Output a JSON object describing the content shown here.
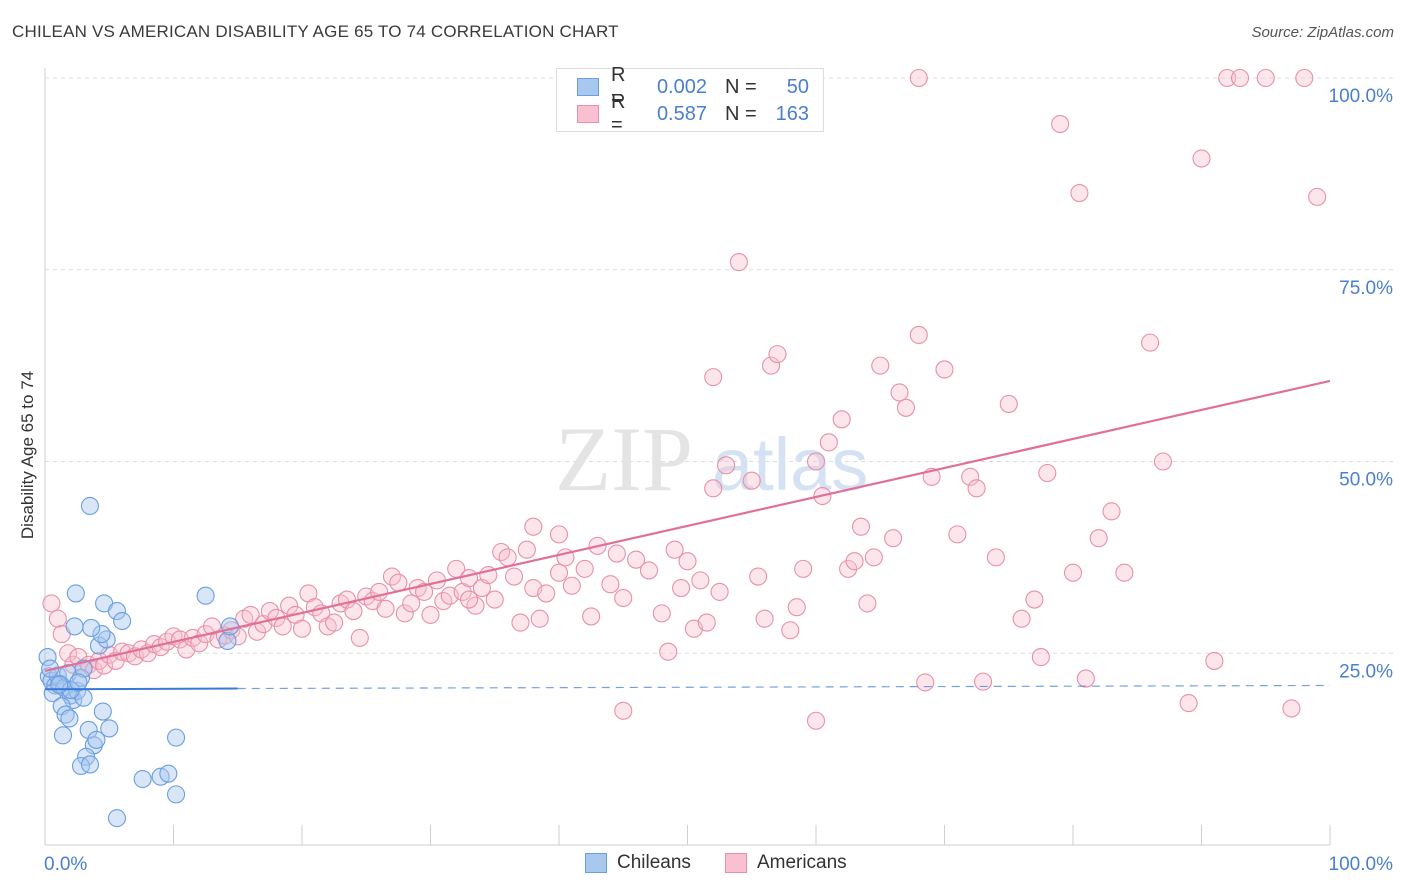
{
  "header": {
    "title": "CHILEAN VS AMERICAN DISABILITY AGE 65 TO 74 CORRELATION CHART",
    "source": "Source: ZipAtlas.com"
  },
  "legend": {
    "rows": [
      {
        "r_label": "R =",
        "r_value": "0.002",
        "n_label": "N =",
        "n_value": "50",
        "color": "#a8c8f0",
        "border": "#6a9ee0"
      },
      {
        "r_label": "R =",
        "r_value": "0.587",
        "n_label": "N =",
        "n_value": "163",
        "color": "#f8c0d0",
        "border": "#e890a8"
      }
    ]
  },
  "bottom_legend": {
    "items": [
      {
        "label": "Chileans",
        "color": "#a8c8f0",
        "border": "#6a9ee0"
      },
      {
        "label": "Americans",
        "color": "#f8c0d0",
        "border": "#e890a8"
      }
    ]
  },
  "watermark": {
    "zip": "ZIP",
    "atlas": "atlas"
  },
  "chart_data": {
    "type": "scatter",
    "title": "CHILEAN VS AMERICAN DISABILITY AGE 65 TO 74 CORRELATION CHART",
    "xlabel": "",
    "ylabel": "Disability Age 65 to 74",
    "xlim": [
      0,
      100
    ],
    "ylim": [
      0,
      100
    ],
    "x_tick_labels": [
      "0.0%",
      "100.0%"
    ],
    "y_tick_values": [
      25,
      50,
      75,
      100
    ],
    "y_tick_labels": [
      "25.0%",
      "50.0%",
      "75.0%",
      "100.0%"
    ],
    "grid": "horizontal dashed",
    "legend_position": "top-center",
    "colors": {
      "chileans": "#6a9ee0",
      "americans": "#e890a8",
      "chileans_line": "#3a78d8",
      "americans_line": "#e0709a",
      "axis_text": "#4a7fd0"
    },
    "series": [
      {
        "name": "Chileans",
        "trend": {
          "x": [
            0,
            15
          ],
          "y": [
            20.3,
            20.4
          ],
          "dashed_to": [
            100,
            20.8
          ]
        },
        "points": [
          [
            0.3,
            22.0
          ],
          [
            0.5,
            21.4
          ],
          [
            0.8,
            20.8
          ],
          [
            1.0,
            22.1
          ],
          [
            1.2,
            21.0
          ],
          [
            0.6,
            19.8
          ],
          [
            1.5,
            20.5
          ],
          [
            1.8,
            22.4
          ],
          [
            2.0,
            19.5
          ],
          [
            2.2,
            18.9
          ],
          [
            2.5,
            20.1
          ],
          [
            2.8,
            21.8
          ],
          [
            3.0,
            19.2
          ],
          [
            1.3,
            18.1
          ],
          [
            1.6,
            17.0
          ],
          [
            1.9,
            16.5
          ],
          [
            1.4,
            14.3
          ],
          [
            3.4,
            15.0
          ],
          [
            3.8,
            13.0
          ],
          [
            4.0,
            13.7
          ],
          [
            5.0,
            15.2
          ],
          [
            3.2,
            11.5
          ],
          [
            2.8,
            10.3
          ],
          [
            3.5,
            10.5
          ],
          [
            4.5,
            17.4
          ],
          [
            4.2,
            26.0
          ],
          [
            4.8,
            26.8
          ],
          [
            4.4,
            27.5
          ],
          [
            3.6,
            28.3
          ],
          [
            2.3,
            28.5
          ],
          [
            4.6,
            31.5
          ],
          [
            5.6,
            30.5
          ],
          [
            6.0,
            29.2
          ],
          [
            2.4,
            32.8
          ],
          [
            3.5,
            44.2
          ],
          [
            12.5,
            32.5
          ],
          [
            14.2,
            26.6
          ],
          [
            14.4,
            28.5
          ],
          [
            7.6,
            8.6
          ],
          [
            9.0,
            8.9
          ],
          [
            9.6,
            9.3
          ],
          [
            10.2,
            6.6
          ],
          [
            5.6,
            3.5
          ],
          [
            10.2,
            14.0
          ],
          [
            0.2,
            24.5
          ],
          [
            0.4,
            23.0
          ],
          [
            2.0,
            20.2
          ],
          [
            3.0,
            23.0
          ],
          [
            1.1,
            20.9
          ],
          [
            2.6,
            21.2
          ]
        ]
      },
      {
        "name": "Americans",
        "trend": {
          "x": [
            0,
            100
          ],
          "y": [
            22.7,
            60.5
          ]
        },
        "points": [
          [
            0.5,
            31.5
          ],
          [
            1.0,
            29.5
          ],
          [
            1.3,
            27.5
          ],
          [
            1.8,
            25.0
          ],
          [
            2.2,
            23.5
          ],
          [
            2.6,
            24.5
          ],
          [
            3.0,
            23.0
          ],
          [
            3.4,
            23.5
          ],
          [
            3.8,
            22.8
          ],
          [
            4.2,
            24.0
          ],
          [
            4.6,
            23.4
          ],
          [
            5.0,
            24.8
          ],
          [
            5.5,
            24.0
          ],
          [
            6.0,
            25.2
          ],
          [
            6.5,
            25.0
          ],
          [
            7.0,
            24.6
          ],
          [
            7.5,
            25.5
          ],
          [
            8.0,
            25.0
          ],
          [
            8.5,
            26.2
          ],
          [
            9.0,
            25.8
          ],
          [
            9.5,
            26.5
          ],
          [
            10.0,
            27.2
          ],
          [
            10.5,
            26.8
          ],
          [
            11.0,
            25.5
          ],
          [
            11.5,
            27.0
          ],
          [
            12.0,
            26.3
          ],
          [
            12.5,
            27.5
          ],
          [
            13.0,
            28.5
          ],
          [
            13.5,
            26.8
          ],
          [
            14.0,
            27.3
          ],
          [
            14.5,
            28.0
          ],
          [
            15.0,
            27.2
          ],
          [
            15.5,
            29.5
          ],
          [
            16.0,
            30.0
          ],
          [
            16.5,
            27.8
          ],
          [
            17.0,
            28.8
          ],
          [
            17.5,
            30.5
          ],
          [
            18.0,
            29.6
          ],
          [
            18.5,
            28.5
          ],
          [
            19.0,
            31.2
          ],
          [
            19.5,
            30.0
          ],
          [
            20.0,
            28.2
          ],
          [
            20.5,
            32.8
          ],
          [
            21.0,
            31.0
          ],
          [
            21.5,
            30.2
          ],
          [
            22.0,
            28.5
          ],
          [
            22.5,
            29.0
          ],
          [
            23.0,
            31.5
          ],
          [
            23.5,
            32.0
          ],
          [
            24.0,
            30.5
          ],
          [
            24.5,
            27.0
          ],
          [
            25.0,
            32.4
          ],
          [
            25.5,
            31.8
          ],
          [
            26.0,
            33.0
          ],
          [
            26.5,
            30.8
          ],
          [
            27.0,
            35.0
          ],
          [
            27.5,
            34.2
          ],
          [
            28.0,
            30.2
          ],
          [
            28.5,
            31.5
          ],
          [
            29.0,
            33.5
          ],
          [
            29.5,
            33.0
          ],
          [
            30.0,
            30.0
          ],
          [
            30.5,
            34.5
          ],
          [
            31.0,
            31.8
          ],
          [
            31.5,
            32.5
          ],
          [
            32.0,
            36.0
          ],
          [
            32.5,
            33.0
          ],
          [
            33.0,
            34.8
          ],
          [
            33.5,
            31.2
          ],
          [
            34.0,
            33.5
          ],
          [
            34.5,
            35.2
          ],
          [
            35.0,
            32.0
          ],
          [
            35.5,
            38.2
          ],
          [
            36.0,
            37.5
          ],
          [
            36.5,
            35.0
          ],
          [
            37.0,
            29.0
          ],
          [
            37.5,
            38.5
          ],
          [
            38.0,
            33.5
          ],
          [
            38.5,
            29.5
          ],
          [
            39.0,
            32.8
          ],
          [
            40.0,
            35.5
          ],
          [
            40.5,
            37.5
          ],
          [
            41.0,
            33.8
          ],
          [
            42.0,
            36.0
          ],
          [
            42.5,
            29.8
          ],
          [
            43.0,
            39.0
          ],
          [
            44.0,
            34.0
          ],
          [
            44.5,
            38.0
          ],
          [
            45.0,
            32.2
          ],
          [
            46.0,
            37.2
          ],
          [
            47.0,
            35.8
          ],
          [
            48.0,
            30.2
          ],
          [
            48.5,
            25.2
          ],
          [
            49.0,
            38.5
          ],
          [
            49.5,
            33.5
          ],
          [
            50.0,
            37.0
          ],
          [
            50.5,
            28.2
          ],
          [
            51.0,
            34.5
          ],
          [
            51.5,
            29.0
          ],
          [
            52.0,
            61.0
          ],
          [
            52.5,
            33.0
          ],
          [
            53.0,
            49.5
          ],
          [
            54.0,
            76.0
          ],
          [
            55.0,
            47.5
          ],
          [
            55.5,
            35.0
          ],
          [
            56.0,
            29.5
          ],
          [
            56.5,
            62.5
          ],
          [
            57.0,
            64.0
          ],
          [
            58.0,
            28.0
          ],
          [
            58.5,
            31.0
          ],
          [
            59.0,
            36.0
          ],
          [
            60.0,
            50.0
          ],
          [
            60.5,
            45.5
          ],
          [
            61.0,
            52.5
          ],
          [
            62.0,
            55.5
          ],
          [
            62.5,
            36.0
          ],
          [
            63.0,
            37.0
          ],
          [
            63.5,
            41.5
          ],
          [
            64.0,
            31.5
          ],
          [
            64.5,
            37.5
          ],
          [
            65.0,
            62.5
          ],
          [
            66.0,
            40.0
          ],
          [
            66.5,
            59.0
          ],
          [
            67.0,
            57.0
          ],
          [
            68.0,
            66.5
          ],
          [
            68.5,
            21.2
          ],
          [
            69.0,
            48.0
          ],
          [
            70.0,
            62.0
          ],
          [
            71.0,
            40.5
          ],
          [
            72.0,
            48.0
          ],
          [
            72.5,
            46.5
          ],
          [
            73.0,
            21.3
          ],
          [
            74.0,
            37.5
          ],
          [
            75.0,
            57.5
          ],
          [
            76.0,
            29.5
          ],
          [
            77.0,
            32.0
          ],
          [
            77.5,
            24.5
          ],
          [
            78.0,
            48.5
          ],
          [
            79.0,
            94.0
          ],
          [
            80.0,
            35.5
          ],
          [
            81.0,
            21.7
          ],
          [
            82.0,
            40.0
          ],
          [
            83.0,
            43.5
          ],
          [
            84.0,
            35.5
          ],
          [
            86.0,
            65.5
          ],
          [
            87.0,
            50.0
          ],
          [
            89.0,
            18.5
          ],
          [
            90.0,
            89.5
          ],
          [
            91.0,
            24.0
          ],
          [
            92.0,
            100.0
          ],
          [
            93.0,
            100.0
          ],
          [
            95.0,
            100.0
          ],
          [
            97.0,
            17.8
          ],
          [
            98.0,
            100.0
          ],
          [
            99.0,
            84.5
          ],
          [
            68.0,
            100.0
          ],
          [
            80.5,
            85.0
          ],
          [
            52.0,
            46.5
          ],
          [
            60.0,
            16.2
          ],
          [
            45.0,
            17.5
          ],
          [
            40.0,
            40.5
          ],
          [
            38.0,
            41.5
          ],
          [
            33.0,
            32.0
          ]
        ]
      }
    ]
  }
}
